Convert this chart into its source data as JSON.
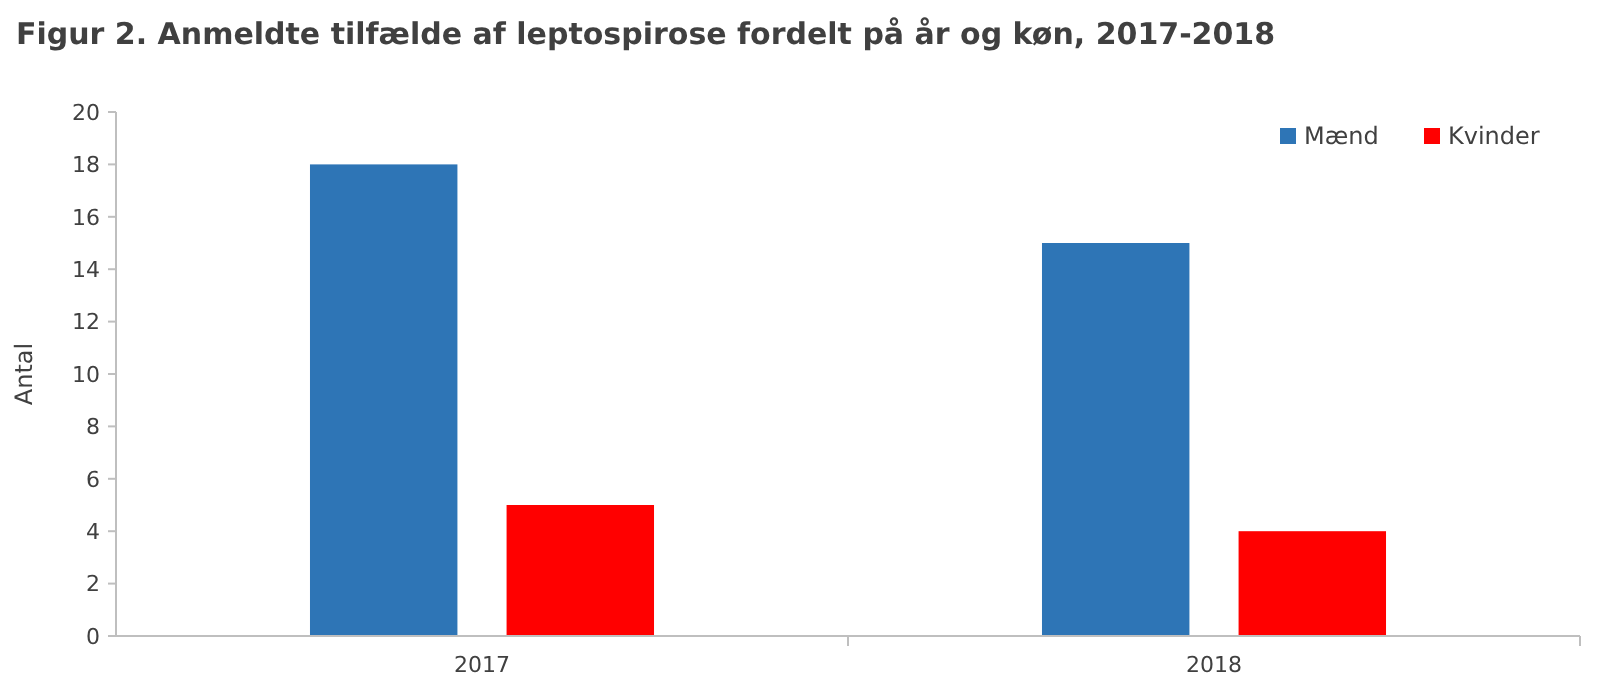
{
  "chart_data": {
    "type": "bar",
    "title": "Figur 2. Anmeldte tilfælde af leptospirose fordelt på år og køn, 2017-2018",
    "ylabel": "Antal",
    "categories": [
      "2017",
      "2018"
    ],
    "series": [
      {
        "name": "Mænd",
        "color": "#2e75b6",
        "values": [
          18,
          15
        ]
      },
      {
        "name": "Kvinder",
        "color": "#ff0000",
        "values": [
          5,
          4
        ]
      }
    ],
    "ylim": [
      0,
      20
    ],
    "yticks": [
      0,
      2,
      4,
      6,
      8,
      10,
      12,
      14,
      16,
      18,
      20
    ],
    "grid": false,
    "legend": "top right"
  }
}
